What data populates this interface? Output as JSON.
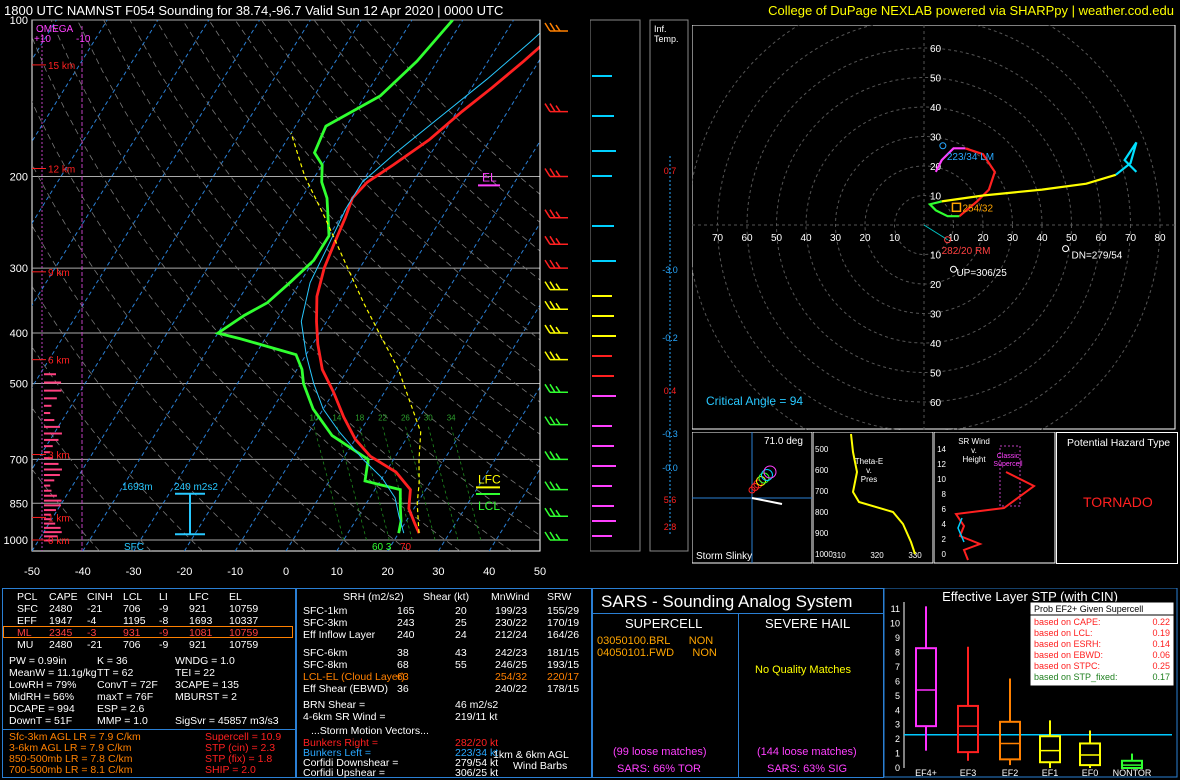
{
  "header": {
    "title": "1800 UTC NAMNST F054 Sounding for 38.74,-96.7 Valid  Sun 12 Apr 2020 | 0000 UTC",
    "credit": "College of DuPage NEXLAB powered via SHARPpy | weather.cod.edu"
  },
  "skewt": {
    "pressure_ticks": [
      "100",
      "200",
      "300",
      "400",
      "500",
      "700",
      "850",
      "1000"
    ],
    "temp_ticks": [
      "-50",
      "-40",
      "-30",
      "-20",
      "-10",
      "0",
      "10",
      "20",
      "30",
      "40",
      "50"
    ],
    "height_labels": [
      "15 km",
      "12 km",
      "9 km",
      "6 km",
      "3 km",
      "1 km",
      "0 km"
    ],
    "omega_label": "OMEGA",
    "omega_ticks": [
      "+10",
      "-10"
    ],
    "el_label": "EL",
    "lfc_label": "LFC",
    "lcl_label": "LCL",
    "effective_inflow_label": "1693m",
    "effective_srh_label": "240 m2s2",
    "sfc_label": "SFC",
    "sfc_values": [
      "60",
      "3",
      "70"
    ],
    "mixing_ratio_labels": [
      "10",
      "14",
      "18",
      "22",
      "26",
      "30",
      "34"
    ],
    "inf_temp_label": "Inf.\nTemp.",
    "inf_temp_values": [
      "0.7",
      "-3.0",
      "-0.2",
      "0.4",
      "-0.3",
      "-0.0",
      "5.6",
      "2.8"
    ],
    "chart_data": {
      "type": "line",
      "x_unit": "°C",
      "y_unit": "hPa",
      "xlim": [
        -50,
        50
      ],
      "ylim": [
        1050,
        100
      ],
      "series": [
        {
          "name": "Temperature",
          "color": "#ff2020",
          "points": [
            [
              24,
              970
            ],
            [
              22,
              930
            ],
            [
              19,
              870
            ],
            [
              17,
              800
            ],
            [
              12,
              740
            ],
            [
              5,
              690
            ],
            [
              0,
              640
            ],
            [
              -5,
              580
            ],
            [
              -10,
              520
            ],
            [
              -15,
              470
            ],
            [
              -19,
              420
            ],
            [
              -22,
              380
            ],
            [
              -25,
              340
            ],
            [
              -27,
              300
            ],
            [
              -28,
              270
            ],
            [
              -29,
              240
            ],
            [
              -30,
              220
            ],
            [
              -29,
              205
            ],
            [
              -26,
              190
            ],
            [
              -22,
              170
            ],
            [
              -19,
              150
            ],
            [
              -16,
              135
            ],
            [
              -13,
              120
            ],
            [
              -11,
              110
            ],
            [
              -9,
              100
            ]
          ]
        },
        {
          "name": "Dewpoint",
          "color": "#30ff30",
          "points": [
            [
              20,
              970
            ],
            [
              19,
              920
            ],
            [
              17,
              860
            ],
            [
              15,
              800
            ],
            [
              7,
              770
            ],
            [
              5,
              700
            ],
            [
              -5,
              630
            ],
            [
              -12,
              560
            ],
            [
              -17,
              500
            ],
            [
              -19,
              470
            ],
            [
              -22,
              440
            ],
            [
              -35,
              410
            ],
            [
              -40,
              400
            ],
            [
              -37,
              370
            ],
            [
              -34,
              350
            ],
            [
              -32,
              320
            ],
            [
              -30,
              290
            ],
            [
              -30,
              260
            ],
            [
              -35,
              220
            ],
            [
              -38,
              205
            ],
            [
              -40,
              190
            ],
            [
              -43,
              180
            ],
            [
              -44,
              160
            ],
            [
              -37,
              140
            ],
            [
              -34,
              120
            ],
            [
              -32,
              100
            ]
          ]
        },
        {
          "name": "Wetbulb",
          "color": "#28c8ff",
          "points": [
            [
              21,
              970
            ],
            [
              18,
              900
            ],
            [
              15,
              830
            ],
            [
              10,
              760
            ],
            [
              4,
              700
            ],
            [
              -4,
              620
            ],
            [
              -10,
              560
            ],
            [
              -15,
              500
            ],
            [
              -20,
              440
            ],
            [
              -25,
              380
            ],
            [
              -28,
              320
            ],
            [
              -29,
              270
            ],
            [
              -30,
              230
            ],
            [
              -30,
              205
            ],
            [
              -27,
              180
            ],
            [
              -22,
              150
            ],
            [
              -18,
              130
            ],
            [
              -14,
              110
            ],
            [
              -12,
              100
            ]
          ]
        },
        {
          "name": "Parcel",
          "color": "#ffff00",
          "points": [
            [
              24,
              970
            ],
            [
              20,
              850
            ],
            [
              18,
              780
            ],
            [
              15,
              700
            ],
            [
              12,
              620
            ],
            [
              6,
              540
            ],
            [
              0,
              470
            ],
            [
              -7,
              410
            ],
            [
              -15,
              350
            ],
            [
              -24,
              290
            ],
            [
              -33,
              240
            ],
            [
              -42,
              200
            ],
            [
              -50,
              165
            ]
          ]
        }
      ]
    }
  },
  "hodograph": {
    "ring_labels": [
      "10",
      "20",
      "30",
      "40",
      "50",
      "60"
    ],
    "axis_labels_x": [
      "70",
      "60",
      "50",
      "40",
      "30",
      "20",
      "10",
      "10",
      "20",
      "30",
      "40",
      "50",
      "60",
      "70",
      "80"
    ],
    "lm_label": "223/34 LM",
    "rm_label": "282/20 RM",
    "mean_label": "254/32",
    "dn_label": "DN=279/54",
    "up_label": "UP=306/25",
    "critical_angle": "Critical Angle = 94",
    "chart_data": {
      "type": "line",
      "series": [
        {
          "name": "0-3km",
          "color": "#ff2020",
          "points": [
            [
              12,
              3
            ],
            [
              18,
              8
            ],
            [
              22,
              12
            ],
            [
              24,
              18
            ],
            [
              20,
              24
            ],
            [
              14,
              26
            ]
          ]
        },
        {
          "name": "3-6km",
          "color": "#30ff30",
          "points": [
            [
              12,
              3
            ],
            [
              8,
              3
            ],
            [
              4,
              5
            ],
            [
              2,
              7
            ],
            [
              6,
              8
            ]
          ]
        },
        {
          "name": "6-9km",
          "color": "#ffff00",
          "points": [
            [
              6,
              8
            ],
            [
              20,
              10
            ],
            [
              40,
              12
            ],
            [
              55,
              14
            ],
            [
              65,
              17
            ]
          ]
        },
        {
          "name": "9-12km",
          "color": "#ff40ff",
          "points": [
            [
              14,
              26
            ],
            [
              10,
              26
            ],
            [
              6,
              22
            ],
            [
              4,
              18
            ]
          ]
        },
        {
          "name": "12+km",
          "color": "#00e0ff",
          "points": [
            [
              65,
              17
            ],
            [
              70,
              21
            ],
            [
              72,
              28
            ],
            [
              68,
              22
            ],
            [
              72,
              18
            ]
          ]
        }
      ],
      "xlim": [
        -80,
        80
      ],
      "ylim": [
        -70,
        70
      ]
    }
  },
  "mini_panels": {
    "slinky_angle": "71.0 deg",
    "slinky_label": "Storm Slinky",
    "theta_label": "Theta-E\nv.\nPres",
    "theta_y_ticks": [
      "500",
      "600",
      "700",
      "800",
      "900",
      "1000"
    ],
    "theta_x_ticks": [
      "310",
      "320",
      "330"
    ],
    "srwind_label": "SR Wind\nv.\nHeight",
    "classic_supercell": "Classic\nSupercell",
    "srwind_y_ticks": [
      "14",
      "12",
      "10",
      "8",
      "6",
      "4",
      "2",
      "0"
    ],
    "hazard_title": "Potential Hazard Type",
    "hazard_value": "TORNADO"
  },
  "parcel_table": {
    "headers": [
      "PCL",
      "CAPE",
      "CINH",
      "LCL",
      "LI",
      "LFC",
      "EL"
    ],
    "rows": [
      [
        "SFC",
        "2480",
        "-21",
        "706",
        "-9",
        "921",
        "10759"
      ],
      [
        "EFF",
        "1947",
        "-4",
        "1195",
        "-8",
        "1693",
        "10337"
      ],
      [
        "ML",
        "2345",
        "-3",
        "931",
        "-9",
        "1081",
        "10759"
      ],
      [
        "MU",
        "2480",
        "-21",
        "706",
        "-9",
        "921",
        "10759"
      ]
    ]
  },
  "indices": {
    "col1": [
      "PW = 0.99in",
      "MeanW = 11.1g/kg",
      "LowRH = 79%",
      "MidRH = 56%",
      "DCAPE = 994",
      "DownT = 51F"
    ],
    "col2": [
      "K = 36",
      "TT = 62",
      "ConvT = 72F",
      "maxT = 76F",
      "ESP = 2.6",
      "MMP = 1.0"
    ],
    "col3": [
      "WNDG = 1.0",
      "TEI = 22",
      "3CAPE = 135",
      "MBURST = 2",
      "",
      ""
    ],
    "sigsvr": "SigSvr = 45857 m3/s3",
    "lapse": [
      "Sfc-3km AGL LR = 7.9 C/km",
      "3-6km AGL LR = 7.9 C/km",
      "850-500mb LR = 7.8 C/km",
      "700-500mb LR = 8.1 C/km"
    ],
    "composite": [
      "Supercell = 10.9",
      "STP (cin) = 2.3",
      "STP (fix) = 1.8",
      "SHIP = 2.0"
    ]
  },
  "kinematics": {
    "headers": [
      "SRH (m2/s2)",
      "Shear (kt)",
      "MnWind",
      "SRW"
    ],
    "rows": [
      [
        "SFC-1km",
        "165",
        "20",
        "199/23",
        "155/29"
      ],
      [
        "SFC-3km",
        "243",
        "25",
        "230/22",
        "170/19"
      ],
      [
        "Eff Inflow Layer",
        "240",
        "24",
        "212/24",
        "164/26"
      ],
      [
        "SFC-6km",
        "38",
        "43",
        "242/23",
        "181/15"
      ],
      [
        "SFC-8km",
        "68",
        "55",
        "246/25",
        "193/15"
      ],
      [
        "LCL-EL (Cloud Layer)",
        "63",
        "",
        "254/32",
        "220/17"
      ],
      [
        "Eff Shear (EBWD)",
        "36",
        "",
        "240/22",
        "178/15"
      ]
    ],
    "brn_shear": "BRN Shear =",
    "brn_value": "46 m2/s2",
    "shear_46": "4-6km SR Wind =",
    "shear_46_value": "219/11 kt",
    "storm_motion_title": "...Storm Motion Vectors...",
    "motions": [
      [
        "Bunkers Right =",
        "282/20 kt"
      ],
      [
        "Bunkers Left =",
        "223/34 kt"
      ],
      [
        "Corfidi Downshear =",
        "279/54 kt"
      ],
      [
        "Corfidi Upshear =",
        "306/25 kt"
      ]
    ],
    "barb_caption": "1km & 6km AGL\nWind Barbs"
  },
  "sars": {
    "title": "SARS - Sounding Analog System",
    "supercell_head": "SUPERCELL",
    "hail_head": "SEVERE HAIL",
    "supercell_matches": [
      [
        "03050100.BRL",
        "NON"
      ],
      [
        "04050101.FWD",
        "NON"
      ]
    ],
    "hail_matches": "No Quality Matches",
    "supercell_loose": "(99 loose matches)",
    "hail_loose": "(144 loose matches)",
    "supercell_pct": "SARS: 66% TOR",
    "hail_pct": "SARS: 63% SIG"
  },
  "stp": {
    "title": "Effective Layer STP (with CIN)",
    "y_ticks": [
      "11",
      "10",
      "9",
      "8",
      "7",
      "6",
      "5",
      "4",
      "3",
      "2",
      "1",
      "0"
    ],
    "categories": [
      "EF4+",
      "EF3",
      "EF2",
      "EF1",
      "EF0",
      "NONTOR"
    ],
    "prob_title": "Prob EF2+ Given Supercell",
    "probs": [
      [
        "based on CAPE:",
        "0.22"
      ],
      [
        "based on LCL:",
        "0.19"
      ],
      [
        "based on ESRH:",
        "0.14"
      ],
      [
        "based on EBWD:",
        "0.06"
      ],
      [
        "based on STPC:",
        "0.25"
      ],
      [
        "based on STP_fixed:",
        "0.17"
      ]
    ],
    "chart_data": {
      "type": "bar",
      "categories": [
        "EF4+",
        "EF3",
        "EF2",
        "EF1",
        "EF0",
        "NONTOR"
      ],
      "boxes": [
        {
          "color": "#ff30ff",
          "whisker": [
            1.2,
            11.2
          ],
          "box": [
            2.9,
            8.3
          ],
          "median": 5.4
        },
        {
          "color": "#ff2020",
          "whisker": [
            0.5,
            8.4
          ],
          "box": [
            1.1,
            4.3
          ],
          "median": 2.9
        },
        {
          "color": "#ff8000",
          "whisker": [
            0.2,
            6.2
          ],
          "box": [
            0.6,
            3.2
          ],
          "median": 1.7
        },
        {
          "color": "#ffff00",
          "whisker": [
            0.0,
            3.3
          ],
          "box": [
            0.4,
            2.2
          ],
          "median": 1.2
        },
        {
          "color": "#ffff00",
          "whisker": [
            0.0,
            2.6
          ],
          "box": [
            0.2,
            1.7
          ],
          "median": 0.9
        },
        {
          "color": "#30ff30",
          "whisker": [
            0.0,
            1.0
          ],
          "box": [
            0.0,
            0.5
          ],
          "median": 0.2
        }
      ],
      "current_value": 2.3,
      "ylim": [
        0,
        11.5
      ]
    }
  }
}
